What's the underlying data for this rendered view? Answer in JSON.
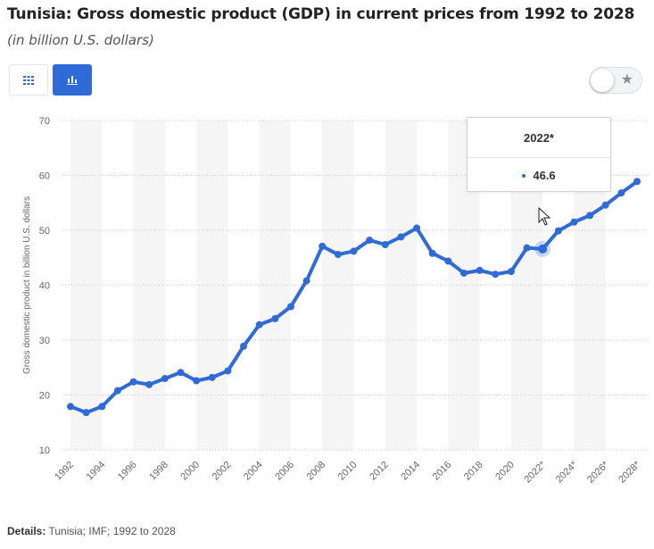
{
  "header": {
    "title": "Tunisia: Gross domestic product (GDP) in current prices from 1992 to 2028",
    "subtitle": "(in billion U.S. dollars)"
  },
  "toolbar": {
    "table_icon": "grid-icon",
    "chart_icon": "bar-chart-icon",
    "favorite_icon": "star-icon",
    "accent_color": "#2f6ad9"
  },
  "tooltip": {
    "label": "2022*",
    "value": "46.6"
  },
  "footer": {
    "details_label": "Details:",
    "details_text": "Tunisia; IMF; 1992 to 2028"
  },
  "chart_data": {
    "type": "line",
    "title": "Tunisia: Gross domestic product (GDP) in current prices from 1992 to 2028",
    "subtitle": "(in billion U.S. dollars)",
    "ylabel": "Gross domestic product in billion U.S. dollars",
    "xlabel": "",
    "ylim": [
      10,
      70
    ],
    "yticks": [
      10,
      20,
      30,
      40,
      50,
      60,
      70
    ],
    "grid": true,
    "legend": "none",
    "color": "#2f6ad9",
    "highlighted_category": "2022*",
    "categories": [
      "1992",
      "1993",
      "1994",
      "1995",
      "1996",
      "1997",
      "1998",
      "1999",
      "2000",
      "2001",
      "2002",
      "2003",
      "2004",
      "2005",
      "2006",
      "2007",
      "2008",
      "2009",
      "2010",
      "2011",
      "2012",
      "2013",
      "2014",
      "2015",
      "2016",
      "2017",
      "2018",
      "2019",
      "2020",
      "2021",
      "2022*",
      "2023*",
      "2024*",
      "2025*",
      "2026*",
      "2027*",
      "2028*"
    ],
    "tick_labels": [
      "1992",
      "1994",
      "1996",
      "1998",
      "2000",
      "2002",
      "2004",
      "2006",
      "2008",
      "2010",
      "2012",
      "2014",
      "2016",
      "2018",
      "2020",
      "2022*",
      "2024*",
      "2026*",
      "2028*"
    ],
    "values": [
      17.9,
      16.8,
      17.9,
      20.8,
      22.4,
      21.9,
      23.0,
      24.1,
      22.6,
      23.2,
      24.4,
      28.9,
      32.8,
      33.9,
      36.1,
      40.8,
      47.1,
      45.6,
      46.2,
      48.2,
      47.4,
      48.8,
      50.4,
      45.8,
      44.4,
      42.2,
      42.7,
      42.0,
      42.5,
      46.8,
      46.6,
      49.9,
      51.5,
      52.7,
      54.6,
      56.8,
      58.9
    ]
  }
}
